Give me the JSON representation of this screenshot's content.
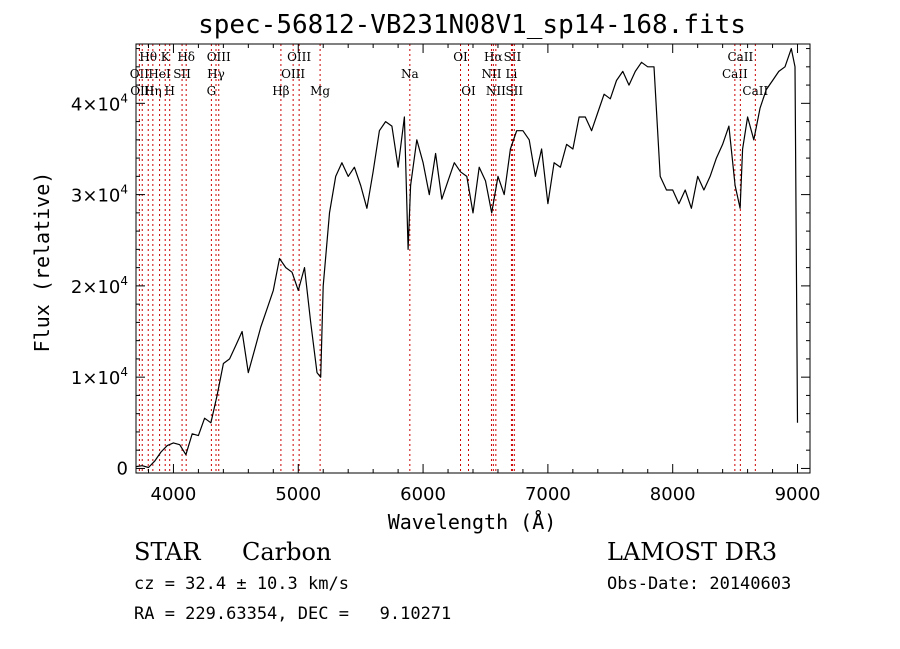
{
  "chart_data": {
    "type": "line",
    "title": "spec-56812-VB231N08V1_sp14-168.fits",
    "xlabel": "Wavelength (Å)",
    "ylabel": "Flux (relative)",
    "xlim": [
      3700,
      9100
    ],
    "ylim": [
      -500,
      46500
    ],
    "x_ticks": [
      {
        "value": 4000,
        "label": "4000"
      },
      {
        "value": 5000,
        "label": "5000"
      },
      {
        "value": 6000,
        "label": "6000"
      },
      {
        "value": 7000,
        "label": "7000"
      },
      {
        "value": 8000,
        "label": "8000"
      },
      {
        "value": 9000,
        "label": "9000"
      }
    ],
    "y_ticks": [
      {
        "value": 0,
        "label": "0",
        "base": "",
        "exp": ""
      },
      {
        "value": 10000,
        "label": "1×10^4",
        "base": "1×10",
        "exp": "4"
      },
      {
        "value": 20000,
        "label": "2×10^4",
        "base": "2×10",
        "exp": "4"
      },
      {
        "value": 30000,
        "label": "3×10^4",
        "base": "3×10",
        "exp": "4"
      },
      {
        "value": 40000,
        "label": "4×10^4",
        "base": "4×10",
        "exp": "4"
      }
    ],
    "line_color": "#000000",
    "marker_color": "#cc0000",
    "series": [
      {
        "x": [
          3700,
          3750,
          3800,
          3850,
          3900,
          3950,
          4000,
          4050,
          4100,
          4150,
          4200,
          4250,
          4300,
          4350,
          4400,
          4450,
          4500,
          4550,
          4600,
          4650,
          4700,
          4750,
          4800,
          4850,
          4900,
          4950,
          5000,
          5050,
          5100,
          5150,
          5180,
          5200,
          5250,
          5300,
          5350,
          5400,
          5450,
          5500,
          5550,
          5600,
          5650,
          5700,
          5750,
          5800,
          5850,
          5880,
          5900,
          5950,
          6000,
          6050,
          6100,
          6150,
          6200,
          6250,
          6300,
          6350,
          6400,
          6450,
          6500,
          6550,
          6600,
          6650,
          6700,
          6750,
          6800,
          6850,
          6900,
          6950,
          7000,
          7050,
          7100,
          7150,
          7200,
          7250,
          7300,
          7350,
          7400,
          7450,
          7500,
          7550,
          7600,
          7650,
          7700,
          7750,
          7800,
          7850,
          7900,
          7950,
          8000,
          8050,
          8100,
          8150,
          8200,
          8250,
          8300,
          8350,
          8400,
          8450,
          8500,
          8540,
          8560,
          8600,
          8650,
          8700,
          8750,
          8800,
          8850,
          8900,
          8950,
          8980,
          9000
        ],
        "y": [
          200,
          300,
          100,
          800,
          1800,
          2500,
          2800,
          2600,
          1500,
          3800,
          3600,
          5500,
          5000,
          8000,
          11500,
          12000,
          13500,
          15000,
          10500,
          13000,
          15500,
          17500,
          19500,
          23000,
          22000,
          21500,
          19500,
          22000,
          16000,
          10500,
          10000,
          20000,
          28000,
          32000,
          33500,
          32000,
          33000,
          31000,
          28500,
          32500,
          37000,
          38000,
          37500,
          33000,
          38500,
          24000,
          31000,
          36000,
          33500,
          30000,
          34500,
          29500,
          31500,
          33500,
          32500,
          32000,
          28000,
          33000,
          31500,
          28000,
          32000,
          30000,
          35000,
          37000,
          37000,
          36000,
          32000,
          35000,
          29000,
          33500,
          33000,
          35500,
          35000,
          38500,
          38500,
          37000,
          39000,
          41000,
          40500,
          42500,
          43500,
          42000,
          43500,
          44500,
          44000,
          44000,
          32000,
          30500,
          30500,
          29000,
          30500,
          28500,
          32000,
          30500,
          32000,
          34000,
          35500,
          37500,
          31000,
          28500,
          35000,
          38500,
          36000,
          39500,
          41500,
          42500,
          43500,
          44000,
          46000,
          44000,
          5000
        ]
      }
    ],
    "spectral_lines": [
      {
        "wavelength": 3727,
        "label": "OII",
        "row": 2
      },
      {
        "wavelength": 3750,
        "label": "OIII",
        "row": 3
      },
      {
        "wavelength": 3798,
        "label": "Hθ",
        "row": 1
      },
      {
        "wavelength": 3835,
        "label": "Hη",
        "row": 3
      },
      {
        "wavelength": 3889,
        "label": "HeI",
        "row": 2
      },
      {
        "wavelength": 3934,
        "label": "K",
        "row": 1
      },
      {
        "wavelength": 3970,
        "label": "H",
        "row": 3
      },
      {
        "wavelength": 4069,
        "label": "SII",
        "row": 2
      },
      {
        "wavelength": 4102,
        "label": "Hδ",
        "row": 1
      },
      {
        "wavelength": 4304,
        "label": "G",
        "row": 3
      },
      {
        "wavelength": 4341,
        "label": "Hγ",
        "row": 2
      },
      {
        "wavelength": 4363,
        "label": "OIII",
        "row": 1
      },
      {
        "wavelength": 4861,
        "label": "Hβ",
        "row": 3
      },
      {
        "wavelength": 4959,
        "label": "OIII",
        "row": 2
      },
      {
        "wavelength": 5007,
        "label": "OIII",
        "row": 1
      },
      {
        "wavelength": 5175,
        "label": "Mg",
        "row": 3
      },
      {
        "wavelength": 5894,
        "label": "Na",
        "row": 2
      },
      {
        "wavelength": 6300,
        "label": "OI",
        "row": 1
      },
      {
        "wavelength": 6364,
        "label": "OI",
        "row": 3
      },
      {
        "wavelength": 6548,
        "label": "NII",
        "row": 2
      },
      {
        "wavelength": 6563,
        "label": "Hα",
        "row": 1
      },
      {
        "wavelength": 6583,
        "label": "NII",
        "row": 3
      },
      {
        "wavelength": 6708,
        "label": "Li",
        "row": 2
      },
      {
        "wavelength": 6716,
        "label": "SII",
        "row": 1
      },
      {
        "wavelength": 6731,
        "label": "SII",
        "row": 3
      },
      {
        "wavelength": 8498,
        "label": "CaII",
        "row": 2
      },
      {
        "wavelength": 8542,
        "label": "CaII",
        "row": 1
      },
      {
        "wavelength": 8662,
        "label": "CaII",
        "row": 3
      }
    ]
  },
  "info": {
    "class_label": "STAR",
    "subclass_label": "Carbon",
    "survey": "LAMOST DR3",
    "cz": "cz = 32.4 ± 10.3 km/s",
    "obs_date": "Obs-Date: 20140603",
    "radec": "RA = 229.63354, DEC =   9.10271"
  }
}
